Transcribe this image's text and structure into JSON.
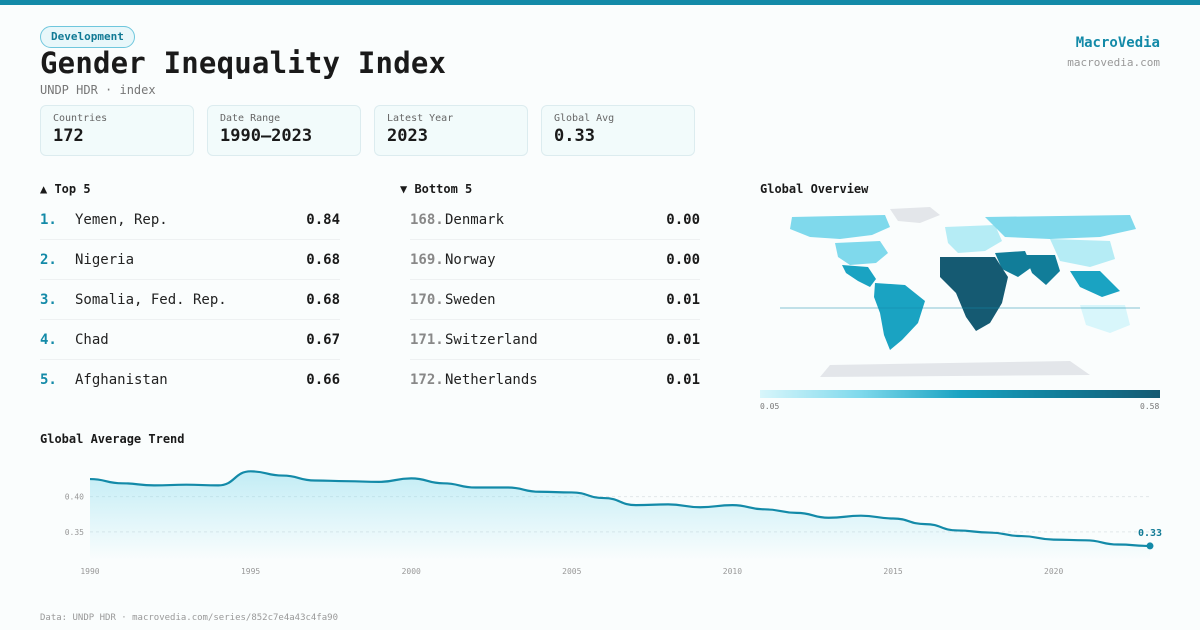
{
  "header": {
    "category": "Development",
    "title": "Gender Inequality Index",
    "subtitle": "UNDP HDR · index",
    "brand": "MacroVedia",
    "brand_url": "macrovedia.com"
  },
  "stats": [
    {
      "label": "Countries",
      "value": "172"
    },
    {
      "label": "Date Range",
      "value": "1990–2023"
    },
    {
      "label": "Latest Year",
      "value": "2023"
    },
    {
      "label": "Global Avg",
      "value": "0.33"
    }
  ],
  "top5": {
    "heading": "▲ Top 5",
    "items": [
      {
        "rank": "1.",
        "name": "Yemen, Rep.",
        "value": "0.84"
      },
      {
        "rank": "2.",
        "name": "Nigeria",
        "value": "0.68"
      },
      {
        "rank": "3.",
        "name": "Somalia, Fed. Rep.",
        "value": "0.68"
      },
      {
        "rank": "4.",
        "name": "Chad",
        "value": "0.67"
      },
      {
        "rank": "5.",
        "name": "Afghanistan",
        "value": "0.66"
      }
    ]
  },
  "bottom5": {
    "heading": "▼ Bottom 5",
    "items": [
      {
        "rank": "168.",
        "name": "Denmark",
        "value": "0.00"
      },
      {
        "rank": "169.",
        "name": "Norway",
        "value": "0.00"
      },
      {
        "rank": "170.",
        "name": "Sweden",
        "value": "0.01"
      },
      {
        "rank": "171.",
        "name": "Switzerland",
        "value": "0.01"
      },
      {
        "rank": "172.",
        "name": "Netherlands",
        "value": "0.01"
      }
    ]
  },
  "map": {
    "heading": "Global Overview",
    "legend_min": "0.05",
    "legend_max": "0.58",
    "colors": [
      "#d8f6fb",
      "#7fd9ec",
      "#1aa3c2",
      "#117d99",
      "#155a72"
    ],
    "no_data_color": "#e3e6ea"
  },
  "trend_heading": "Global Average Trend",
  "footer": "Data: UNDP HDR · macrovedia.com/series/852c7e4a43c4fa90",
  "chart_data": {
    "type": "area",
    "x": [
      1990,
      1991,
      1992,
      1993,
      1994,
      1995,
      1996,
      1997,
      1998,
      1999,
      2000,
      2001,
      2002,
      2003,
      2004,
      2005,
      2006,
      2007,
      2008,
      2009,
      2010,
      2011,
      2012,
      2013,
      2014,
      2015,
      2016,
      2017,
      2018,
      2019,
      2020,
      2021,
      2022,
      2023
    ],
    "values": [
      0.425,
      0.419,
      0.416,
      0.417,
      0.416,
      0.436,
      0.43,
      0.423,
      0.422,
      0.421,
      0.426,
      0.419,
      0.413,
      0.413,
      0.407,
      0.406,
      0.398,
      0.388,
      0.389,
      0.385,
      0.388,
      0.382,
      0.377,
      0.37,
      0.373,
      0.369,
      0.361,
      0.352,
      0.349,
      0.344,
      0.339,
      0.338,
      0.332,
      0.33
    ],
    "xticks": [
      1990,
      1995,
      2000,
      2005,
      2010,
      2015,
      2020
    ],
    "yticks": [
      0.35,
      0.4
    ],
    "ylim": [
      0.31,
      0.445
    ],
    "xlim": [
      1990,
      2023
    ],
    "end_label": "0.33",
    "grid": true,
    "line_color": "#138aa8"
  }
}
